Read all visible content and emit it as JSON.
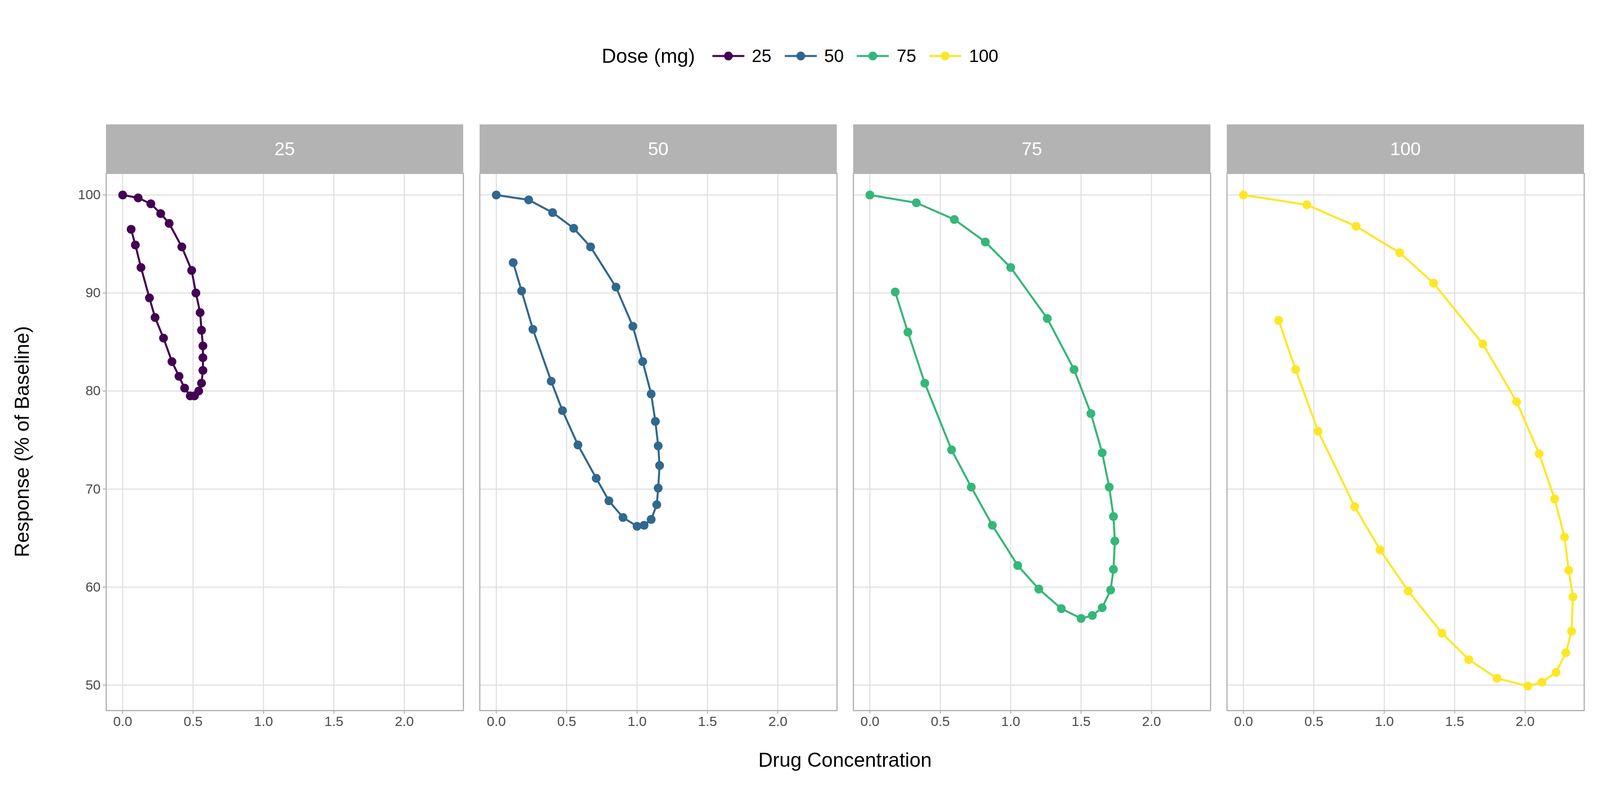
{
  "chart_data": {
    "type": "line",
    "xlabel": "Drug Concentration",
    "ylabel": "Response (% of Baseline)",
    "legend_title": "Dose (mg)",
    "legend": "top",
    "grid": true,
    "marker": "circle",
    "xlim": [
      -0.117,
      2.42
    ],
    "ylim": [
      47.4,
      102.2
    ],
    "xticks": [
      {
        "value": 0,
        "label": "0.0"
      },
      {
        "value": 0.5,
        "label": "0.5"
      },
      {
        "value": 1,
        "label": "1.0"
      },
      {
        "value": 1.5,
        "label": "1.5"
      },
      {
        "value": 2,
        "label": "2.0"
      }
    ],
    "yticks": [
      50,
      60,
      70,
      80,
      90,
      100
    ],
    "series": [
      {
        "name": "25",
        "color": "#440154",
        "x": [
          0,
          0.11,
          0.2,
          0.27,
          0.33,
          0.42,
          0.49,
          0.52,
          0.55,
          0.56,
          0.57,
          0.57,
          0.57,
          0.56,
          0.54,
          0.51,
          0.48,
          0.44,
          0.4,
          0.35,
          0.29,
          0.23,
          0.19,
          0.13,
          0.09,
          0.06
        ],
        "values": [
          100,
          99.7,
          99.1,
          98.1,
          97.1,
          94.7,
          92.3,
          90.0,
          88.0,
          86.2,
          84.6,
          83.4,
          82.1,
          80.8,
          80.0,
          79.5,
          79.5,
          80.3,
          81.5,
          83.0,
          85.4,
          87.5,
          89.5,
          92.6,
          94.9,
          96.5
        ]
      },
      {
        "name": "50",
        "color": "#31688E",
        "x": [
          0,
          0.23,
          0.4,
          0.55,
          0.67,
          0.85,
          0.97,
          1.04,
          1.1,
          1.13,
          1.15,
          1.16,
          1.15,
          1.14,
          1.1,
          1.05,
          1.0,
          0.9,
          0.8,
          0.71,
          0.58,
          0.47,
          0.39,
          0.26,
          0.18,
          0.12
        ],
        "values": [
          100,
          99.5,
          98.2,
          96.6,
          94.7,
          90.6,
          86.6,
          83.0,
          79.7,
          76.9,
          74.4,
          72.4,
          70.1,
          68.4,
          66.9,
          66.3,
          66.2,
          67.1,
          68.8,
          71.1,
          74.5,
          78.0,
          81.0,
          86.3,
          90.2,
          93.1
        ]
      },
      {
        "name": "75",
        "color": "#35B779",
        "x": [
          0,
          0.33,
          0.6,
          0.82,
          1.0,
          1.26,
          1.45,
          1.57,
          1.65,
          1.7,
          1.73,
          1.74,
          1.73,
          1.71,
          1.65,
          1.58,
          1.5,
          1.36,
          1.2,
          1.05,
          0.87,
          0.72,
          0.58,
          0.39,
          0.27,
          0.18
        ],
        "values": [
          100,
          99.2,
          97.5,
          95.2,
          92.6,
          87.4,
          82.2,
          77.7,
          73.7,
          70.2,
          67.2,
          64.7,
          61.8,
          59.7,
          57.9,
          57.1,
          56.8,
          57.8,
          59.8,
          62.2,
          66.3,
          70.2,
          74.0,
          80.8,
          86.0,
          90.1
        ]
      },
      {
        "name": "100",
        "color": "#FDE725",
        "x": [
          0,
          0.45,
          0.8,
          1.11,
          1.35,
          1.7,
          1.94,
          2.1,
          2.21,
          2.28,
          2.31,
          2.34,
          2.33,
          2.29,
          2.22,
          2.12,
          2.02,
          1.8,
          1.6,
          1.41,
          1.17,
          0.97,
          0.79,
          0.53,
          0.37,
          0.25
        ],
        "values": [
          100,
          99.0,
          96.8,
          94.1,
          91.0,
          84.8,
          78.9,
          73.6,
          69.0,
          65.1,
          61.7,
          59.0,
          55.5,
          53.3,
          51.3,
          50.3,
          49.9,
          50.7,
          52.6,
          55.3,
          59.6,
          63.8,
          68.2,
          75.9,
          82.2,
          87.2
        ]
      }
    ]
  }
}
